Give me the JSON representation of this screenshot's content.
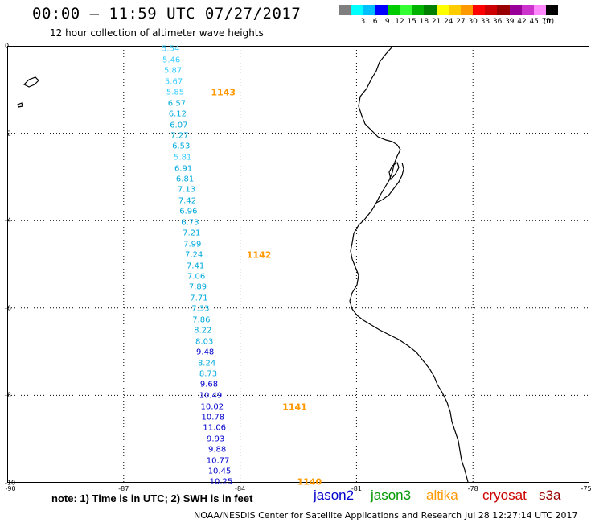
{
  "header": {
    "title": "00:00 – 11:59 UTC 07/27/2017",
    "subtitle": "12 hour collection of altimeter wave heights"
  },
  "color_scale": {
    "unit": "(ft)",
    "bins": [
      {
        "label": "",
        "color": "#7f7f7f"
      },
      {
        "label": "3",
        "color": "#00ffff"
      },
      {
        "label": "6",
        "color": "#00bfff"
      },
      {
        "label": "9",
        "color": "#0000ff"
      },
      {
        "label": "12",
        "color": "#00cc00"
      },
      {
        "label": "15",
        "color": "#33ff33"
      },
      {
        "label": "18",
        "color": "#00b300"
      },
      {
        "label": "21",
        "color": "#008000"
      },
      {
        "label": "24",
        "color": "#ffff00"
      },
      {
        "label": "27",
        "color": "#ffcc00"
      },
      {
        "label": "30",
        "color": "#ff9900"
      },
      {
        "label": "33",
        "color": "#ff0000"
      },
      {
        "label": "36",
        "color": "#cc0000"
      },
      {
        "label": "39",
        "color": "#990000"
      },
      {
        "label": "42",
        "color": "#990099"
      },
      {
        "label": "45",
        "color": "#cc33cc"
      },
      {
        "label": "70",
        "color": "#ff88ff"
      },
      {
        "label": "",
        "color": "#000000"
      }
    ]
  },
  "map": {
    "lon_range": [
      -90,
      -75
    ],
    "lat_range": [
      -10,
      0
    ],
    "lon_ticks": [
      "-90",
      "-87",
      "-84",
      "-81",
      "-78",
      "-75"
    ],
    "lat_ticks": [
      "0",
      "-2",
      "-4",
      "-6",
      "-8",
      "-10"
    ],
    "grid": "dotted",
    "coastline_color": "#000000"
  },
  "swh_points": [
    {
      "value": "5.54",
      "lon": -85.79,
      "lat": -0.08,
      "color": "#33ccff"
    },
    {
      "value": "5.46",
      "lon": -85.77,
      "lat": -0.33,
      "color": "#33ccff"
    },
    {
      "value": "5.87",
      "lon": -85.73,
      "lat": -0.58,
      "color": "#33ccff"
    },
    {
      "value": "5.67",
      "lon": -85.71,
      "lat": -0.82,
      "color": "#33ccff"
    },
    {
      "value": "5.85",
      "lon": -85.67,
      "lat": -1.07,
      "color": "#33ccff"
    },
    {
      "value": "6.57",
      "lon": -85.63,
      "lat": -1.32,
      "color": "#00aadd"
    },
    {
      "value": "6.12",
      "lon": -85.61,
      "lat": -1.57,
      "color": "#00aadd"
    },
    {
      "value": "6.07",
      "lon": -85.58,
      "lat": -1.82,
      "color": "#00aadd"
    },
    {
      "value": "7.27",
      "lon": -85.56,
      "lat": -2.06,
      "color": "#00aadd"
    },
    {
      "value": "6.53",
      "lon": -85.52,
      "lat": -2.31,
      "color": "#00aadd"
    },
    {
      "value": "5.81",
      "lon": -85.48,
      "lat": -2.56,
      "color": "#33ccff"
    },
    {
      "value": "6.91",
      "lon": -85.46,
      "lat": -2.81,
      "color": "#00aadd"
    },
    {
      "value": "6.81",
      "lon": -85.42,
      "lat": -3.05,
      "color": "#00aadd"
    },
    {
      "value": "7.13",
      "lon": -85.38,
      "lat": -3.3,
      "color": "#00aadd"
    },
    {
      "value": "7.42",
      "lon": -85.36,
      "lat": -3.55,
      "color": "#00aadd"
    },
    {
      "value": "6.96",
      "lon": -85.33,
      "lat": -3.8,
      "color": "#00aadd"
    },
    {
      "value": "6.73",
      "lon": -85.29,
      "lat": -4.05,
      "color": "#00aadd"
    },
    {
      "value": "7.21",
      "lon": -85.25,
      "lat": -4.29,
      "color": "#00aadd"
    },
    {
      "value": "7.99",
      "lon": -85.23,
      "lat": -4.54,
      "color": "#00aadd"
    },
    {
      "value": "7.24",
      "lon": -85.19,
      "lat": -4.79,
      "color": "#00aadd"
    },
    {
      "value": "7.41",
      "lon": -85.15,
      "lat": -5.04,
      "color": "#00aadd"
    },
    {
      "value": "7.06",
      "lon": -85.13,
      "lat": -5.29,
      "color": "#00aadd"
    },
    {
      "value": "7.89",
      "lon": -85.09,
      "lat": -5.53,
      "color": "#00aadd"
    },
    {
      "value": "7.71",
      "lon": -85.06,
      "lat": -5.78,
      "color": "#00aadd"
    },
    {
      "value": "7.33",
      "lon": -85.02,
      "lat": -6.03,
      "color": "#00aadd"
    },
    {
      "value": "7.86",
      "lon": -85.0,
      "lat": -6.28,
      "color": "#00aadd"
    },
    {
      "value": "8.22",
      "lon": -84.96,
      "lat": -6.52,
      "color": "#00aadd"
    },
    {
      "value": "8.03",
      "lon": -84.92,
      "lat": -6.77,
      "color": "#00aadd"
    },
    {
      "value": "9.48",
      "lon": -84.9,
      "lat": -7.02,
      "color": "#0000cc"
    },
    {
      "value": "8.24",
      "lon": -84.86,
      "lat": -7.27,
      "color": "#00aadd"
    },
    {
      "value": "8.73",
      "lon": -84.82,
      "lat": -7.52,
      "color": "#00aadd"
    },
    {
      "value": "9.68",
      "lon": -84.8,
      "lat": -7.76,
      "color": "#0000cc"
    },
    {
      "value": "10.49",
      "lon": -84.76,
      "lat": -8.01,
      "color": "#0000cc"
    },
    {
      "value": "10.02",
      "lon": -84.72,
      "lat": -8.26,
      "color": "#0000cc"
    },
    {
      "value": "10.78",
      "lon": -84.7,
      "lat": -8.51,
      "color": "#0000cc"
    },
    {
      "value": "11.06",
      "lon": -84.66,
      "lat": -8.75,
      "color": "#0000cc"
    },
    {
      "value": "9.93",
      "lon": -84.63,
      "lat": -9.0,
      "color": "#0000cc"
    },
    {
      "value": "9.88",
      "lon": -84.59,
      "lat": -9.25,
      "color": "#0000cc"
    },
    {
      "value": "10.77",
      "lon": -84.57,
      "lat": -9.5,
      "color": "#0000cc"
    },
    {
      "value": "10.45",
      "lon": -84.53,
      "lat": -9.75,
      "color": "#0000cc"
    },
    {
      "value": "10.25",
      "lon": -84.49,
      "lat": -9.99,
      "color": "#0000cc"
    }
  ],
  "pass_labels": [
    {
      "value": "1143",
      "lon": -84.75,
      "lat": -1.07
    },
    {
      "value": "1142",
      "lon": -83.83,
      "lat": -4.79
    },
    {
      "value": "1141",
      "lon": -82.91,
      "lat": -8.26
    },
    {
      "value": "1140",
      "lon": -82.53,
      "lat": -9.99
    }
  ],
  "note": "note:  1) Time is in UTC;  2) SWH is in feet",
  "satellites": [
    {
      "name": "jason2",
      "color": "#0000cc"
    },
    {
      "name": "jason3",
      "color": "#009900"
    },
    {
      "name": "altika",
      "color": "#ff9900"
    },
    {
      "name": "cryosat",
      "color": "#cc0000"
    },
    {
      "name": "s3a",
      "color": "#990000"
    }
  ],
  "footer": {
    "organization": "NOAA/NESDIS Center for Satellite Applications and Research",
    "timestamp": "Jul 28 12:27:14 UTC 2017"
  }
}
